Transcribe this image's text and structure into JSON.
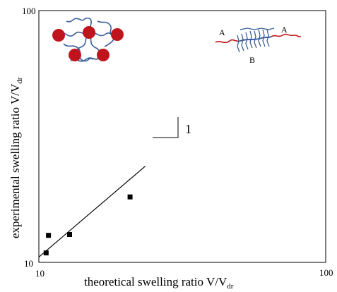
{
  "chart_data": {
    "type": "scatter",
    "x_scale": "log",
    "y_scale": "log",
    "xlim": [
      10,
      100
    ],
    "ylim": [
      10,
      100
    ],
    "x_tick_labels": [
      "10",
      "100"
    ],
    "y_tick_labels": [
      "10",
      "100"
    ],
    "xlabel": "theoretical swelling ratio V/V",
    "xlabel_sub": "dr",
    "ylabel": "experimental swelling ratio  V/V",
    "ylabel_sub": "dr",
    "grid": false,
    "series": [
      {
        "marker": "square",
        "color": "#000000",
        "points": [
          {
            "x": 10.6,
            "y": 10.9
          },
          {
            "x": 10.8,
            "y": 12.8
          },
          {
            "x": 12.8,
            "y": 12.9
          },
          {
            "x": 20.8,
            "y": 18.2
          }
        ]
      }
    ],
    "fit_line": {
      "x": [
        10,
        23.5
      ],
      "y": [
        10.5,
        24.1
      ],
      "color": "#000000"
    },
    "slope_triangle": {
      "label": "1"
    },
    "annotations": {
      "graft_labels": {
        "a_left": "A",
        "a_right": "A",
        "b": "B"
      },
      "colors": {
        "star_core": "#c0141c",
        "chain": "#3a5f9a",
        "graft_a": "#c0141c"
      }
    }
  }
}
